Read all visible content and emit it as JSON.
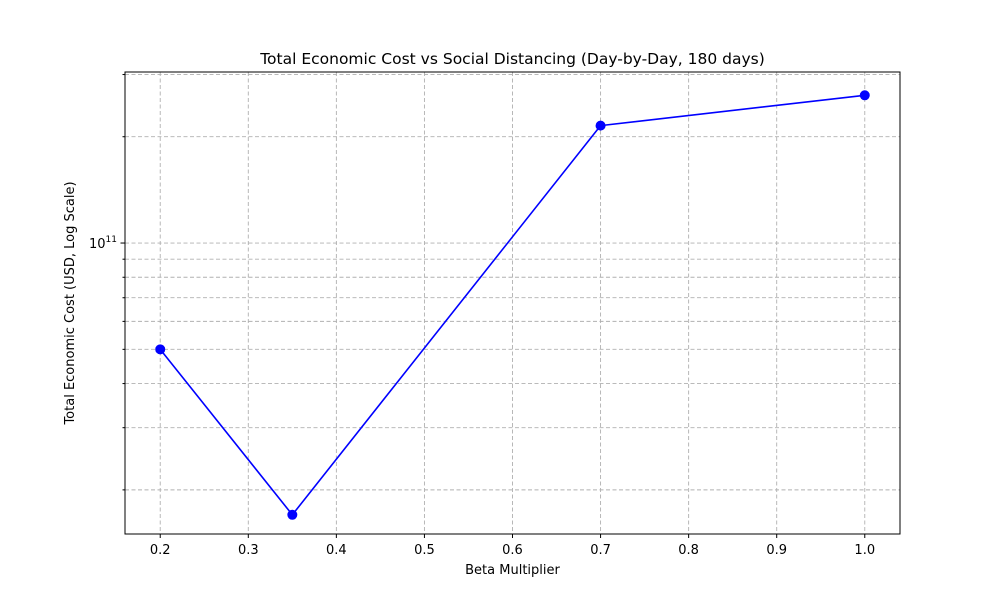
{
  "chart_data": {
    "type": "line",
    "title": "Total Economic Cost vs Social Distancing (Day-by-Day, 180 days)",
    "xlabel": "Beta Multiplier",
    "ylabel": "Total Economic Cost (USD, Log Scale)",
    "x_scale": "linear",
    "y_scale": "log",
    "xlim": [
      0.16,
      1.04
    ],
    "ylim": [
      15000000000,
      305000000000
    ],
    "x_ticks": [
      0.2,
      0.3,
      0.4,
      0.5,
      0.6,
      0.7,
      0.8,
      0.9,
      1.0
    ],
    "x_tick_labels": [
      "0.2",
      "0.3",
      "0.4",
      "0.5",
      "0.6",
      "0.7",
      "0.8",
      "0.9",
      "1.0"
    ],
    "y_major_ticks": [
      {
        "value": 100000000000,
        "base": "10",
        "exponent": "11"
      }
    ],
    "y_minor_ticks": [
      20000000000,
      30000000000,
      40000000000,
      50000000000,
      60000000000,
      70000000000,
      80000000000,
      90000000000,
      200000000000,
      300000000000
    ],
    "grid": true,
    "series": [
      {
        "color": "#0000ff",
        "marker": "circle",
        "x": [
          0.2,
          0.35,
          0.7,
          1.0
        ],
        "y": [
          50000000000,
          17000000000,
          215000000000,
          262000000000
        ]
      }
    ]
  }
}
